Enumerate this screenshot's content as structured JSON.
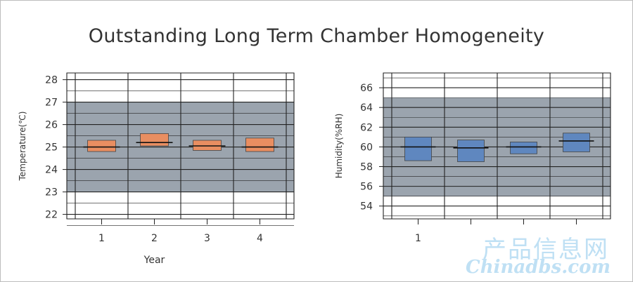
{
  "title": "Outstanding Long Term Chamber Homogeneity",
  "watermark": {
    "cn": "产品信息网",
    "url": "Chinadbs.com"
  },
  "colors": {
    "band": "#9ba4ae",
    "temperature_box": "#e98e61",
    "humidity_box": "#5f87bf",
    "grid": "#222222"
  },
  "chart_data": [
    {
      "type": "box",
      "ylabel": "Temperature(℃)",
      "xlabel": "Year",
      "ylim": [
        21.8,
        28.3
      ],
      "yticks": [
        22,
        23,
        24,
        25,
        26,
        27,
        28
      ],
      "band": [
        23,
        27
      ],
      "categories": [
        "1",
        "2",
        "3",
        "4"
      ],
      "boxes": [
        {
          "low": 24.8,
          "high": 25.3,
          "mid": 25.0
        },
        {
          "low": 25.05,
          "high": 25.6,
          "mid": 25.2
        },
        {
          "low": 24.85,
          "high": 25.3,
          "mid": 25.05
        },
        {
          "low": 24.8,
          "high": 25.4,
          "mid": 25.0
        }
      ]
    },
    {
      "type": "box",
      "ylabel": "Humidity(%RH)",
      "xlabel": "",
      "ylim": [
        52.7,
        67.5
      ],
      "yticks": [
        54,
        56,
        58,
        60,
        62,
        64,
        66
      ],
      "band": [
        55,
        65
      ],
      "categories": [
        "1",
        "",
        "",
        ""
      ],
      "boxes": [
        {
          "low": 58.6,
          "high": 61.0,
          "mid": 60.0
        },
        {
          "low": 58.5,
          "high": 60.7,
          "mid": 59.9
        },
        {
          "low": 59.3,
          "high": 60.5,
          "mid": 60.0
        },
        {
          "low": 59.5,
          "high": 61.4,
          "mid": 60.6
        }
      ]
    }
  ]
}
